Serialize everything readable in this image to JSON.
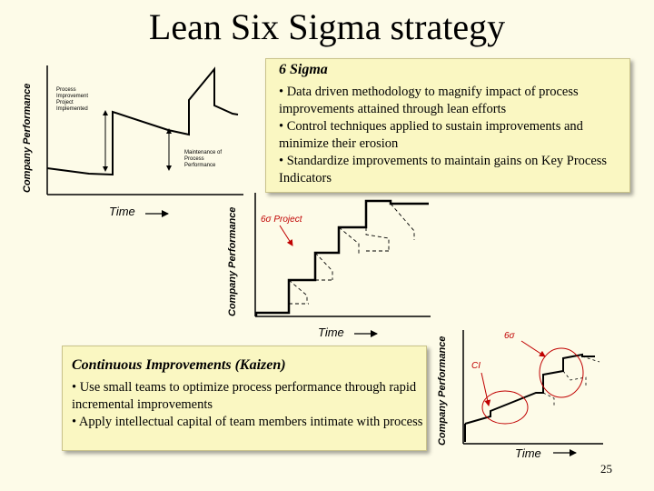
{
  "title": "Lean Six Sigma strategy",
  "six_sigma_box": {
    "heading": "6 Sigma",
    "bullets": [
      "• Data driven methodology to magnify impact of process improvements attained through lean efforts",
      "• Control techniques applied to sustain improvements and minimize their erosion",
      "• Standardize improvements to maintain gains on Key Process Indicators"
    ]
  },
  "kaizen_box": {
    "heading": "Continuous Improvements (Kaizen)",
    "bullets": [
      "• Use small teams to optimize process performance through rapid incremental improvements",
      "• Apply intellectual capital of team members intimate with process"
    ]
  },
  "diagram1": {
    "ylabel": "Company Performance",
    "xlabel": "Time",
    "annotation_top": [
      "Process",
      "Improvement",
      "Project",
      "Implemented"
    ],
    "annotation_bottom": [
      "Maintenance of",
      "Process",
      "Performance"
    ]
  },
  "diagram2": {
    "ylabel": "Company Performance",
    "xlabel": "Time",
    "callout": "6σ Project"
  },
  "diagram3": {
    "ylabel": "Company Performance",
    "xlabel": "Time",
    "callout_sigma": "6σ",
    "callout_ci": "CI"
  },
  "page_number": "25",
  "colors": {
    "callout_red": "#c00000",
    "box_fill": "#faf7c2",
    "background": "#fdfbe8"
  }
}
